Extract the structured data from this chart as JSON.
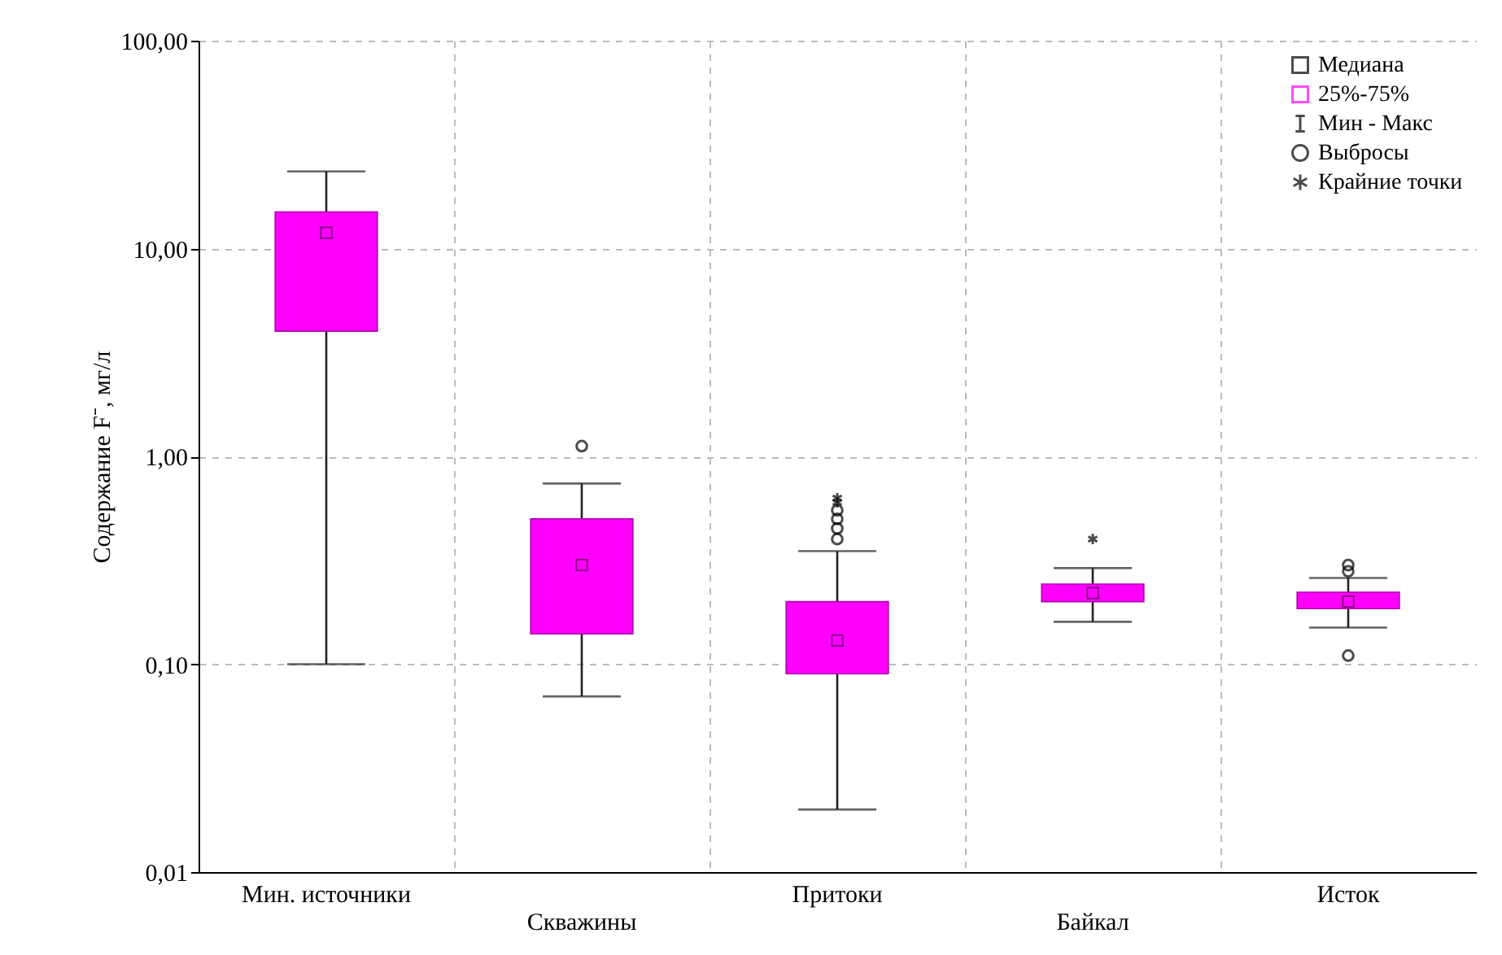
{
  "chart_data": {
    "type": "box",
    "ylabel": "Содержание F⁻, мг/л",
    "categories": [
      "Мин. источники",
      "Скважины",
      "Притоки",
      "Байкал",
      "Исток"
    ],
    "series": [
      {
        "name": "25%-75%",
        "color": "#ff00ff",
        "boxes": [
          {
            "low": 0.1,
            "q1": 4.0,
            "median": 11.9,
            "q3": 15,
            "high": 23.5
          },
          {
            "low": 0.07,
            "q1": 0.14,
            "median": 0.3,
            "q3": 0.5,
            "high": 0.74
          },
          {
            "low": 0.02,
            "q1": 0.09,
            "median": 0.13,
            "q3": 0.2,
            "high": 0.35
          },
          {
            "low": 0.16,
            "q1": 0.2,
            "median": 0.22,
            "q3": 0.243,
            "high": 0.29
          },
          {
            "low": 0.15,
            "q1": 0.185,
            "median": 0.2,
            "q3": 0.222,
            "high": 0.26
          }
        ]
      },
      {
        "name": "Выбросы",
        "type": "scatter",
        "marker": "circle",
        "x": [
          "Скважины",
          "Притоки",
          "Притоки",
          "Притоки",
          "Притоки",
          "Исток",
          "Исток",
          "Исток"
        ],
        "values": [
          1.12,
          0.4,
          0.45,
          0.5,
          0.55,
          0.28,
          0.3,
          0.11
        ]
      },
      {
        "name": "Крайние точки",
        "type": "scatter",
        "marker": "cross",
        "x": [
          "Притоки",
          "Притоки",
          "Байкал"
        ],
        "values": [
          0.6,
          0.63,
          0.4
        ]
      }
    ],
    "annotations": [
      "Медиана",
      "Мин - Макс"
    ],
    "ylim": [
      0.01,
      100
    ],
    "yticks": [
      {
        "value": 0.01,
        "label": "0,01"
      },
      {
        "value": 0.1,
        "label": "0,10"
      },
      {
        "value": 1,
        "label": "1,00"
      },
      {
        "value": 10,
        "label": "10,00"
      },
      {
        "value": 100,
        "label": "100,00"
      }
    ],
    "log": true,
    "grid": true,
    "legend": "top right"
  }
}
